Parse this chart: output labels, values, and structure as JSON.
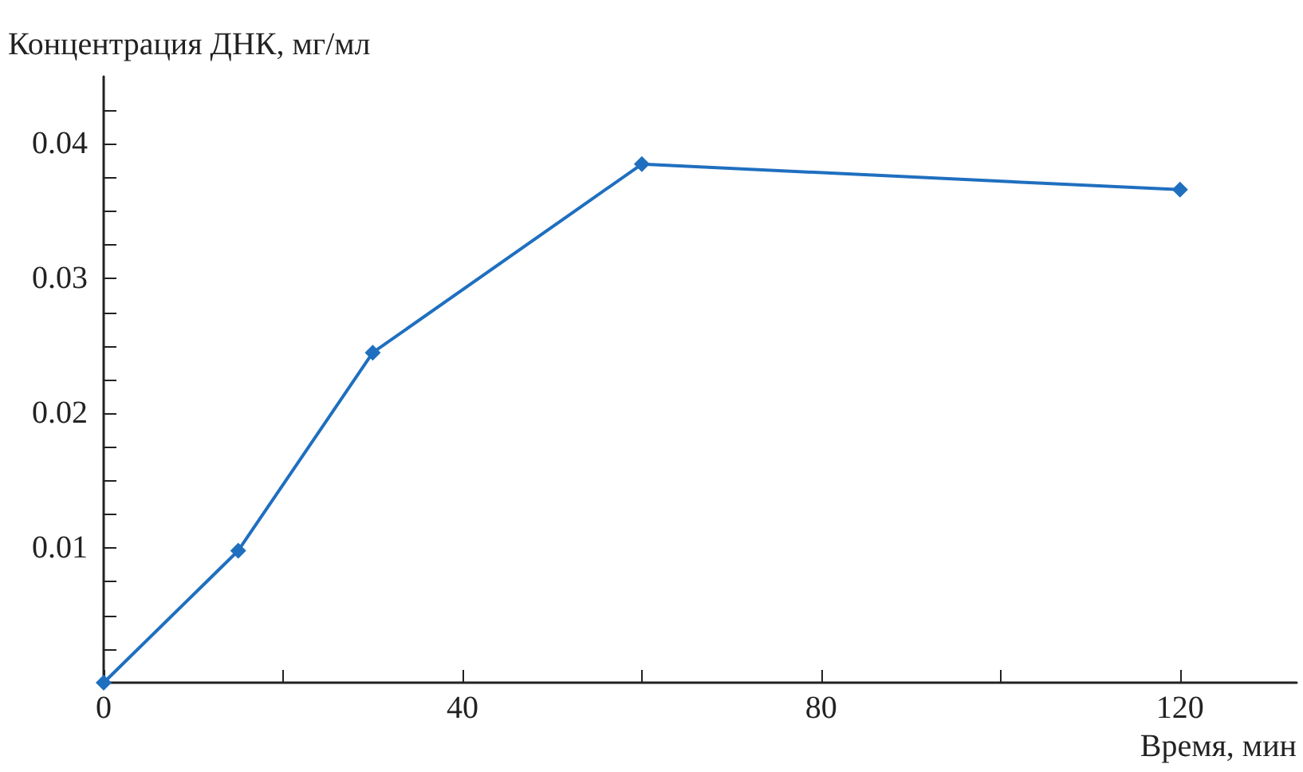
{
  "chart_data": {
    "type": "line",
    "xlabel": "Время, мин",
    "ylabel": "Концентрация ДНК, мг/мл",
    "x": [
      0,
      15,
      30,
      60,
      120
    ],
    "series": [
      {
        "color": "#1f6fbf",
        "values": [
          0,
          0.0098,
          0.0245,
          0.0385,
          0.0366
        ]
      }
    ],
    "xlim": [
      0,
      133
    ],
    "xticks": [
      0,
      {
        "value": 20,
        "label": null
      },
      40,
      {
        "value": 60,
        "label": null
      },
      80,
      {
        "value": 100,
        "label": null
      },
      120
    ],
    "ylim": [
      0,
      0.045
    ],
    "yticks": [
      {
        "value": 0.0025,
        "label": null
      },
      {
        "value": 0.005,
        "label": null
      },
      {
        "value": 0.0075,
        "label": null
      },
      0.01,
      {
        "value": 0.0125,
        "label": null
      },
      {
        "value": 0.015,
        "label": null
      },
      {
        "value": 0.0175,
        "label": null
      },
      0.02,
      {
        "value": 0.0225,
        "label": null
      },
      {
        "value": 0.025,
        "label": null
      },
      {
        "value": 0.0275,
        "label": null
      },
      0.03,
      {
        "value": 0.0325,
        "label": null
      },
      {
        "value": 0.035,
        "label": null
      },
      {
        "value": 0.0375,
        "label": null
      },
      0.04,
      {
        "value": 0.0425,
        "label": null
      }
    ],
    "grid": false,
    "marker": "diamond",
    "line_style": "solid"
  }
}
